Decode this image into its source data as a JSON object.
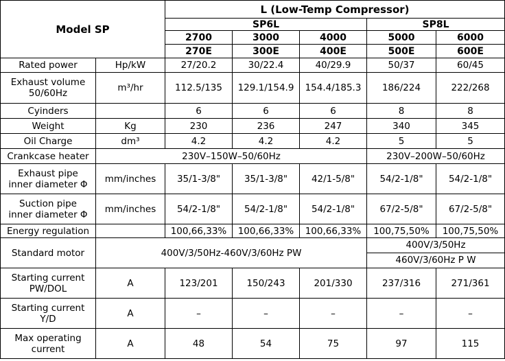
{
  "header": {
    "model_label": "Model SP",
    "title": "L  (Low-Temp Compressor)",
    "group1": "SP6L",
    "group2": "SP8L",
    "models": [
      {
        "code": "2700",
        "variant": "270E"
      },
      {
        "code": "3000",
        "variant": "300E"
      },
      {
        "code": "4000",
        "variant": "400E"
      },
      {
        "code": "5000",
        "variant": "500E"
      },
      {
        "code": "6000",
        "variant": "600E"
      }
    ]
  },
  "rows": {
    "rated_power": {
      "label": "Rated power",
      "unit": "Hp/kW",
      "values": [
        "27/20.2",
        "30/22.4",
        "40/29.9",
        "50/37",
        "60/45"
      ]
    },
    "exhaust_volume": {
      "label1": "Exhaust volume",
      "label2": "50/60Hz",
      "unit": "m³/hr",
      "values": [
        "112.5/135",
        "129.1/154.9",
        "154.4/185.3",
        "186/224",
        "222/268"
      ]
    },
    "cylinders": {
      "label": "Cyinders",
      "unit": "",
      "values": [
        "6",
        "6",
        "6",
        "8",
        "8"
      ]
    },
    "weight": {
      "label": "Weight",
      "unit": "Kg",
      "values": [
        "230",
        "236",
        "247",
        "340",
        "345"
      ]
    },
    "oil_charge": {
      "label": "Oil Charge",
      "unit": "dm³",
      "values": [
        "4.2",
        "4.2",
        "4.2",
        "5",
        "5"
      ]
    },
    "crankcase_heater": {
      "label": "Crankcase heater",
      "sp6l": "230V–150W–50/60Hz",
      "sp8l": "230V–200W–50/60Hz"
    },
    "exhaust_pipe": {
      "label1": "Exhaust pipe",
      "label2": "inner diameter Φ",
      "unit": "mm/inches",
      "values": [
        "35/1-3/8\"",
        "35/1-3/8\"",
        "42/1-5/8\"",
        "54/2-1/8\"",
        "54/2-1/8\""
      ]
    },
    "suction_pipe": {
      "label1": "Suction pipe",
      "label2": "inner diameter Φ",
      "unit": "mm/inches",
      "values": [
        "54/2-1/8\"",
        "54/2-1/8\"",
        "54/2-1/8\"",
        "67/2-5/8\"",
        "67/2-5/8\""
      ]
    },
    "energy_regulation": {
      "label": "Energy regulation",
      "unit": "",
      "values": [
        "100,66,33%",
        "100,66,33%",
        "100,66,33%",
        "100,75,50%",
        "100,75,50%"
      ]
    },
    "standard_motor": {
      "label": "Standard motor",
      "sp6l": "400V/3/50Hz-460V/3/60Hz PW",
      "sp8l_top": "400V/3/50Hz",
      "sp8l_bottom": "460V/3/60Hz  P W"
    },
    "starting_pw": {
      "label1": "Starting current",
      "label2": "PW/DOL",
      "unit": "A",
      "values": [
        "123/201",
        "150/243",
        "201/330",
        "237/316",
        "271/361"
      ]
    },
    "starting_yd": {
      "label1": "Starting current",
      "label2": "Y/D",
      "unit": "A",
      "values": [
        "–",
        "–",
        "–",
        "–",
        "–"
      ]
    },
    "max_current": {
      "label1": "Max operating",
      "label2": "current",
      "unit": "A",
      "values": [
        "48",
        "54",
        "75",
        "97",
        "115"
      ]
    }
  }
}
